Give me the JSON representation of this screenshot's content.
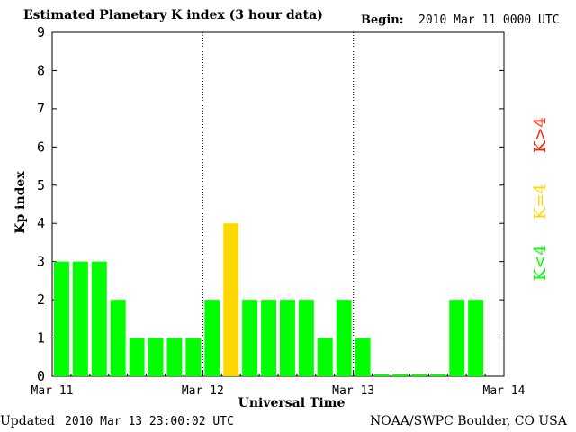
{
  "header": {
    "title": "Estimated Planetary K index (3 hour data)",
    "begin_label": "Begin:",
    "begin_value": "2010 Mar 11 0000 UTC"
  },
  "footer": {
    "updated_label": "Updated",
    "updated_value": "2010 Mar 13 23:00:02 UTC",
    "source": "NOAA/SWPC Boulder, CO USA"
  },
  "legend": {
    "high": "K>4",
    "mid": "K=4",
    "low": "K<4"
  },
  "colors": {
    "low": "#00ff00",
    "mid": "#ffd700",
    "high": "#ff2000",
    "divider": "#000000"
  },
  "chart_data": {
    "type": "bar",
    "ylabel": "Kp index",
    "xlabel": "Universal Time",
    "ylim": [
      0,
      9
    ],
    "yticks": [
      0,
      1,
      2,
      3,
      4,
      5,
      6,
      7,
      8,
      9
    ],
    "xticks": [
      "Mar 11",
      "Mar 12",
      "Mar 13",
      "Mar 14"
    ],
    "periods_per_day": 8,
    "days": 3,
    "values": [
      3,
      3,
      3,
      2,
      1,
      1,
      1,
      1,
      2,
      4,
      2,
      2,
      2,
      2,
      1,
      2,
      1,
      0.05,
      0.05,
      0.05,
      0.05,
      2,
      2
    ],
    "grid": false
  }
}
